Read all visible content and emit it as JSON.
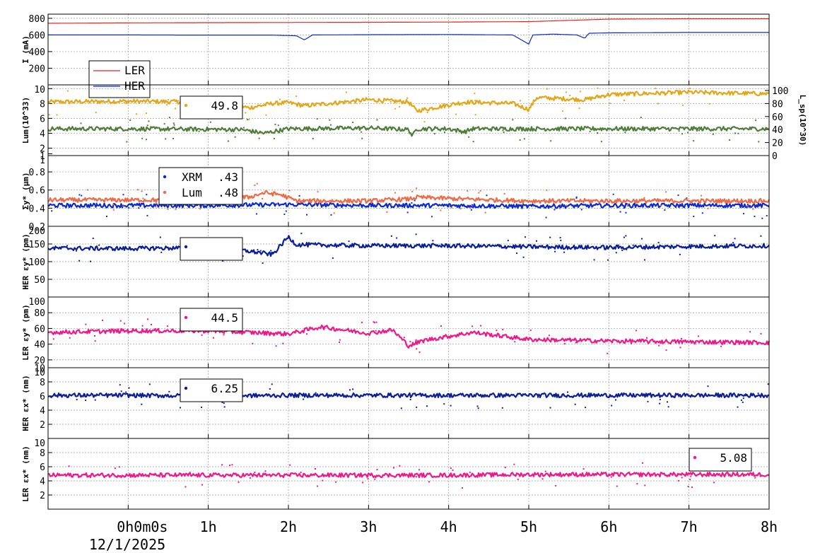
{
  "chart_data": {
    "type": "line",
    "x_ticks": [
      "0h0m0s",
      "1h",
      "2h",
      "3h",
      "4h",
      "5h",
      "6h",
      "7h",
      "8h"
    ],
    "date_label": "12/1/2025",
    "xlim_hours": [
      -1,
      8
    ],
    "panels": [
      {
        "id": "current",
        "ylabel": "I (mA)",
        "ylim": [
          0,
          850
        ],
        "yticks": [
          "200",
          "400",
          "600",
          "800"
        ],
        "yticks_values": [
          200,
          400,
          600,
          800
        ],
        "legend": {
          "entries": [
            {
              "name": "LER",
              "color": "#e8231f"
            },
            {
              "name": "HER",
              "color": "#0a2bd1"
            }
          ]
        },
        "series": [
          {
            "name": "LER",
            "color": "#e8231f",
            "style": "line",
            "x": [
              -1,
              0,
              1,
              2,
              3,
              4,
              4.5,
              5,
              5.5,
              6,
              7,
              8
            ],
            "y": [
              740,
              745,
              748,
              750,
              752,
              755,
              758,
              760,
              775,
              790,
              795,
              795
            ]
          },
          {
            "name": "HER",
            "color": "#0a2bd1",
            "style": "line",
            "x": [
              -1,
              0,
              1,
              1.8,
              2.1,
              2.2,
              2.3,
              3,
              4,
              4.8,
              5,
              5.05,
              5.3,
              5.6,
              5.7,
              5.75,
              6,
              7,
              8
            ],
            "y": [
              600,
              600,
              598,
              598,
              590,
              540,
              600,
              603,
              605,
              600,
              490,
              600,
              610,
              600,
              560,
              620,
              625,
              630,
              630
            ]
          }
        ]
      },
      {
        "id": "luminosity",
        "ylabel": "Lum(10^33)",
        "ylabel_right": "L_sp(10^30)",
        "ylim": [
          1,
          10.5
        ],
        "yticks": [
          "1",
          "2",
          "4",
          "6",
          "8",
          "10"
        ],
        "yticks_values": [
          1,
          2,
          4,
          6,
          8,
          10
        ],
        "yticks_right": [
          "0",
          "20",
          "40",
          "60",
          "80",
          "100"
        ],
        "legend": {
          "entries": [
            {
              "name": "",
              "value": "49.8",
              "color": "#e3a617"
            }
          ]
        },
        "series": [
          {
            "name": "Lum",
            "color": "#e3a617",
            "style": "noisy",
            "x": [
              -1,
              0,
              0.9,
              1.3,
              1.5,
              1.8,
              2.0,
              2.2,
              3,
              3.5,
              3.6,
              4.2,
              4.8,
              5,
              5.1,
              5.7,
              6,
              7,
              8
            ],
            "y": [
              8.2,
              8.3,
              8.2,
              8.0,
              7.4,
              8.0,
              8.1,
              7.7,
              8.5,
              8.2,
              7.0,
              8.2,
              8.0,
              7.2,
              8.8,
              8.5,
              9.2,
              9.5,
              9.3
            ]
          },
          {
            "name": "L_sp",
            "color": "#4e7d3a",
            "style": "noisy",
            "x": [
              -1,
              0,
              1.4,
              1.7,
              2.0,
              3,
              3.5,
              3.55,
              3.6,
              4.0,
              4.2,
              4.3,
              5,
              6,
              7,
              8
            ],
            "y": [
              4.6,
              4.6,
              4.5,
              4.0,
              4.6,
              4.7,
              4.5,
              3.6,
              4.6,
              4.6,
              4.2,
              4.6,
              4.6,
              4.6,
              4.6,
              4.6
            ]
          }
        ]
      },
      {
        "id": "sigma_y",
        "ylabel": "Σy* (μm)",
        "ylim": [
          0.2,
          0.98
        ],
        "yticks": [
          "0.2",
          "0.4",
          "0.6",
          "0.8",
          "1"
        ],
        "yticks_values": [
          0.2,
          0.4,
          0.6,
          0.8,
          1.0
        ],
        "legend": {
          "entries": [
            {
              "name": "XRM",
              "value": ".43",
              "color": "#0a2bd1"
            },
            {
              "name": "Lum",
              "value": ".48",
              "color": "#f06a45"
            }
          ]
        },
        "series": [
          {
            "name": "XRM",
            "color": "#0a2bd1",
            "style": "noisy",
            "x": [
              -1,
              0,
              1,
              2,
              3,
              4,
              5,
              6,
              7,
              8
            ],
            "y": [
              0.43,
              0.43,
              0.43,
              0.44,
              0.43,
              0.43,
              0.42,
              0.43,
              0.43,
              0.43
            ]
          },
          {
            "name": "Lum",
            "color": "#f06a45",
            "style": "noisy",
            "x": [
              -1,
              0,
              1,
              1.5,
              1.7,
              1.9,
              2.1,
              3,
              3.5,
              3.6,
              4.2,
              5,
              6,
              7,
              8
            ],
            "y": [
              0.49,
              0.49,
              0.49,
              0.52,
              0.57,
              0.55,
              0.48,
              0.48,
              0.5,
              0.52,
              0.5,
              0.48,
              0.48,
              0.48,
              0.48
            ]
          }
        ]
      },
      {
        "id": "her_ey",
        "ylabel": "HER εy* (pm)",
        "ylim": [
          0,
          200
        ],
        "yticks": [
          "50",
          "100",
          "150",
          "200"
        ],
        "yticks_values": [
          50,
          100,
          150,
          200
        ],
        "legend": {
          "entries": [
            {
              "name": "",
              "value": "",
              "color": "#0b1f99"
            }
          ]
        },
        "series": [
          {
            "name": "HER",
            "color": "#0b1f99",
            "style": "noisy",
            "x": [
              -1,
              0,
              1,
              1.5,
              1.8,
              2.0,
              2.1,
              3,
              4,
              5,
              6,
              7,
              8
            ],
            "y": [
              138,
              137,
              140,
              130,
              120,
              170,
              148,
              145,
              145,
              142,
              140,
              143,
              145
            ]
          }
        ]
      },
      {
        "id": "ler_ey",
        "ylabel": "LER εy* (pm)",
        "ylim": [
          10,
          100
        ],
        "yticks": [
          "10",
          "20",
          "40",
          "60",
          "80",
          "100"
        ],
        "yticks_values": [
          10,
          20,
          40,
          60,
          80,
          100
        ],
        "legend": {
          "entries": [
            {
              "name": "",
              "value": "44.5",
              "color": "#f0178a"
            }
          ]
        },
        "series": [
          {
            "name": "LER",
            "color": "#f0178a",
            "style": "noisy",
            "x": [
              -1,
              0,
              1,
              2,
              2.4,
              3,
              3.3,
              3.5,
              3.7,
              4,
              4.3,
              5,
              6,
              7,
              8
            ],
            "y": [
              55,
              57,
              57,
              53,
              62,
              54,
              58,
              38,
              45,
              50,
              55,
              46,
              44,
              43,
              42
            ]
          }
        ]
      },
      {
        "id": "her_ex",
        "ylabel": "HER εx* (nm)",
        "ylim": [
          0,
          10
        ],
        "yticks": [
          "2",
          "4",
          "6",
          "8",
          "10"
        ],
        "yticks_values": [
          2,
          4,
          6,
          8,
          10
        ],
        "legend": {
          "entries": [
            {
              "name": "",
              "value": "6.25",
              "color": "#0b1f99"
            }
          ]
        },
        "series": [
          {
            "name": "HER",
            "color": "#0b1f99",
            "style": "noisy",
            "x": [
              -1,
              0,
              1,
              2,
              3,
              4,
              5,
              6,
              7,
              8
            ],
            "y": [
              6.1,
              6.1,
              6.0,
              6.1,
              6.1,
              6.1,
              6.1,
              6.1,
              6.1,
              6.1
            ]
          }
        ]
      },
      {
        "id": "ler_ex",
        "ylabel": "LER εx* (nm)",
        "ylim": [
          0,
          10
        ],
        "yticks": [
          "2",
          "4",
          "6",
          "8",
          "10"
        ],
        "yticks_values": [
          2,
          4,
          6,
          8,
          10
        ],
        "legend": {
          "entries": [
            {
              "name": "",
              "value": "5.08",
              "color": "#f0178a"
            }
          ]
        },
        "series": [
          {
            "name": "LER",
            "color": "#f0178a",
            "style": "noisy",
            "x": [
              -1,
              0,
              1,
              2,
              3,
              4,
              5,
              6,
              7,
              8
            ],
            "y": [
              4.8,
              4.8,
              4.8,
              4.8,
              4.8,
              4.8,
              4.9,
              4.9,
              4.9,
              4.9
            ]
          }
        ]
      }
    ],
    "grid": true
  }
}
